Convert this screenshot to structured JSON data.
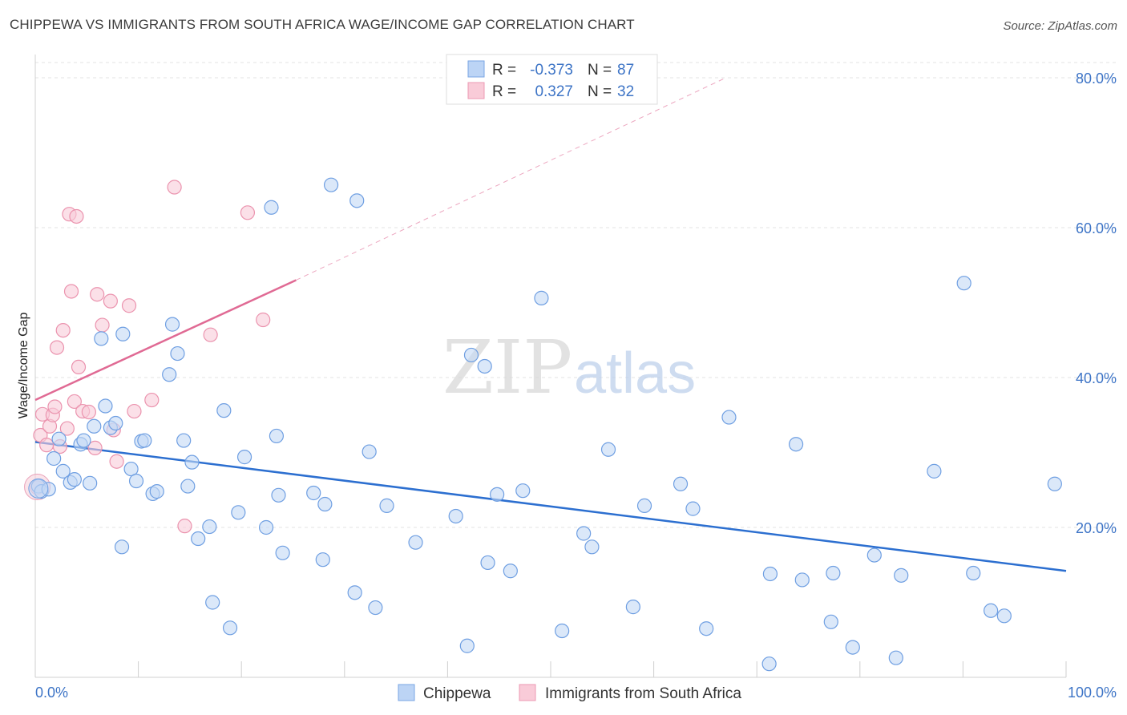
{
  "header": {
    "title": "CHIPPEWA VS IMMIGRANTS FROM SOUTH AFRICA WAGE/INCOME GAP CORRELATION CHART",
    "source": "Source: ZipAtlas.com"
  },
  "watermark": {
    "zip": "ZIP",
    "atlas": "atlas"
  },
  "legend": {
    "rows": [
      {
        "r_label": "R =",
        "r_value": "-0.373",
        "n_label": "N =",
        "n_value": "87"
      },
      {
        "r_label": "R =",
        "r_value": "0.327",
        "n_label": "N =",
        "n_value": "32"
      }
    ]
  },
  "bottom_legend": [
    "Chippewa",
    "Immigrants from South Africa"
  ],
  "chart_data": {
    "type": "scatter",
    "xlabel": "",
    "ylabel": "Wage/Income Gap",
    "xlim": [
      0,
      100
    ],
    "ylim": [
      0,
      80
    ],
    "x_tick_labels": [
      {
        "value": 0,
        "label": "0.0%"
      },
      {
        "value": 100,
        "label": "100.0%"
      }
    ],
    "y_tick_labels": [
      {
        "value": 20,
        "label": "20.0%"
      },
      {
        "value": 40,
        "label": "40.0%"
      },
      {
        "value": 60,
        "label": "60.0%"
      },
      {
        "value": 80,
        "label": "80.0%"
      }
    ],
    "grid": "horizontal-dashed",
    "legend_position": "top-center",
    "colors": {
      "chippewa": "#6a9ae0",
      "immigrants": "#ec8fab",
      "chippewa_line": "#2c6fd0",
      "immigrants_line": "#e06a94"
    },
    "series": [
      {
        "name": "Chippewa",
        "points": [
          [
            0.3,
            25.5
          ],
          [
            0.6,
            24.8
          ],
          [
            1.3,
            25.1
          ],
          [
            1.8,
            29.2
          ],
          [
            2.3,
            31.8
          ],
          [
            2.7,
            27.5
          ],
          [
            3.4,
            26.0
          ],
          [
            3.8,
            26.4
          ],
          [
            4.4,
            31.1
          ],
          [
            4.7,
            31.6
          ],
          [
            5.3,
            25.9
          ],
          [
            5.7,
            33.5
          ],
          [
            6.4,
            45.2
          ],
          [
            6.8,
            36.2
          ],
          [
            7.3,
            33.3
          ],
          [
            7.8,
            33.9
          ],
          [
            8.4,
            17.4
          ],
          [
            8.5,
            45.8
          ],
          [
            9.3,
            27.8
          ],
          [
            9.8,
            26.2
          ],
          [
            10.3,
            31.5
          ],
          [
            10.6,
            31.6
          ],
          [
            11.4,
            24.5
          ],
          [
            11.8,
            24.8
          ],
          [
            13.0,
            40.4
          ],
          [
            13.3,
            47.1
          ],
          [
            13.8,
            43.2
          ],
          [
            14.4,
            31.6
          ],
          [
            14.8,
            25.5
          ],
          [
            15.2,
            28.7
          ],
          [
            15.8,
            18.5
          ],
          [
            16.9,
            20.1
          ],
          [
            17.2,
            10.0
          ],
          [
            18.3,
            35.6
          ],
          [
            18.9,
            6.6
          ],
          [
            19.7,
            22.0
          ],
          [
            20.3,
            29.4
          ],
          [
            22.4,
            20.0
          ],
          [
            22.9,
            62.7
          ],
          [
            23.4,
            32.2
          ],
          [
            23.6,
            24.3
          ],
          [
            24.0,
            16.6
          ],
          [
            27.0,
            24.6
          ],
          [
            27.9,
            15.7
          ],
          [
            28.1,
            23.1
          ],
          [
            28.7,
            65.7
          ],
          [
            31.0,
            11.3
          ],
          [
            31.2,
            63.6
          ],
          [
            32.4,
            30.1
          ],
          [
            33.0,
            9.3
          ],
          [
            34.1,
            22.9
          ],
          [
            36.9,
            18.0
          ],
          [
            40.8,
            21.5
          ],
          [
            41.9,
            4.2
          ],
          [
            42.3,
            43.0
          ],
          [
            43.6,
            41.5
          ],
          [
            43.9,
            15.3
          ],
          [
            44.8,
            24.4
          ],
          [
            46.1,
            14.2
          ],
          [
            47.3,
            24.9
          ],
          [
            49.1,
            50.6
          ],
          [
            51.1,
            6.2
          ],
          [
            53.2,
            19.2
          ],
          [
            54.0,
            17.4
          ],
          [
            55.6,
            30.4
          ],
          [
            58.0,
            9.4
          ],
          [
            59.1,
            22.9
          ],
          [
            62.6,
            25.8
          ],
          [
            63.8,
            22.5
          ],
          [
            65.1,
            6.5
          ],
          [
            67.3,
            34.7
          ],
          [
            71.2,
            1.8
          ],
          [
            71.3,
            13.8
          ],
          [
            73.8,
            31.1
          ],
          [
            74.4,
            13.0
          ],
          [
            77.2,
            7.4
          ],
          [
            77.4,
            13.9
          ],
          [
            79.3,
            4.0
          ],
          [
            81.4,
            16.3
          ],
          [
            83.5,
            2.6
          ],
          [
            84.0,
            13.6
          ],
          [
            87.2,
            27.5
          ],
          [
            90.1,
            52.6
          ],
          [
            91.0,
            13.9
          ],
          [
            92.7,
            8.9
          ],
          [
            94.0,
            8.2
          ],
          [
            98.9,
            25.8
          ]
        ]
      },
      {
        "name": "Immigrants from South Africa",
        "points": [
          [
            0.2,
            25.3
          ],
          [
            0.5,
            32.3
          ],
          [
            0.7,
            35.1
          ],
          [
            1.1,
            31.0
          ],
          [
            1.4,
            33.5
          ],
          [
            1.7,
            35.0
          ],
          [
            1.9,
            36.1
          ],
          [
            2.1,
            44.0
          ],
          [
            2.4,
            30.8
          ],
          [
            2.7,
            46.3
          ],
          [
            3.1,
            33.2
          ],
          [
            3.3,
            61.8
          ],
          [
            3.5,
            51.5
          ],
          [
            3.8,
            36.8
          ],
          [
            4.0,
            61.5
          ],
          [
            4.2,
            41.4
          ],
          [
            4.6,
            35.5
          ],
          [
            5.2,
            35.4
          ],
          [
            5.8,
            30.6
          ],
          [
            6.0,
            51.1
          ],
          [
            6.5,
            47.0
          ],
          [
            7.3,
            50.2
          ],
          [
            7.6,
            33.0
          ],
          [
            7.9,
            28.8
          ],
          [
            9.1,
            49.6
          ],
          [
            9.6,
            35.5
          ],
          [
            11.3,
            37.0
          ],
          [
            13.5,
            65.4
          ],
          [
            14.5,
            20.2
          ],
          [
            17.0,
            45.7
          ],
          [
            20.6,
            62.0
          ],
          [
            22.1,
            47.7
          ]
        ]
      }
    ],
    "trendlines": [
      {
        "series": "Chippewa",
        "from": [
          0,
          31.4
        ],
        "to": [
          100,
          14.2
        ],
        "style": "solid"
      },
      {
        "series": "Immigrants from South Africa",
        "from": [
          0,
          37.0
        ],
        "to": [
          25.3,
          53.0
        ],
        "style": "solid"
      },
      {
        "series": "Immigrants from South Africa",
        "from": [
          25.3,
          53.0
        ],
        "to": [
          67,
          80.0
        ],
        "style": "dashed"
      }
    ]
  }
}
